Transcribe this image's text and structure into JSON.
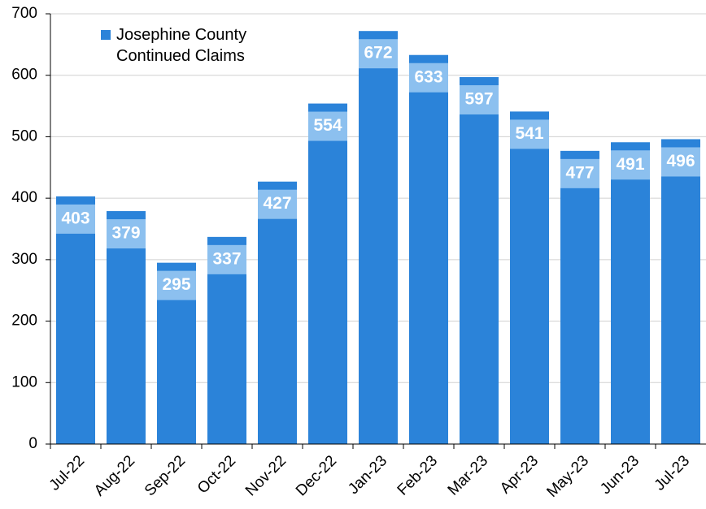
{
  "chart_data": {
    "type": "bar",
    "categories": [
      "Jul-22",
      "Aug-22",
      "Sep-22",
      "Oct-22",
      "Nov-22",
      "Dec-22",
      "Jan-23",
      "Feb-23",
      "Mar-23",
      "Apr-23",
      "May-23",
      "Jun-23",
      "Jul-23"
    ],
    "series": [
      {
        "name": "Josephine County Continued Claims",
        "color": "#2b83d9",
        "values": [
          403,
          379,
          295,
          337,
          427,
          554,
          672,
          633,
          597,
          541,
          477,
          491,
          496
        ]
      }
    ],
    "ylim": [
      0,
      700
    ],
    "yticks": [
      0,
      100,
      200,
      300,
      400,
      500,
      600,
      700
    ],
    "grid": true,
    "legend": "upper left"
  }
}
